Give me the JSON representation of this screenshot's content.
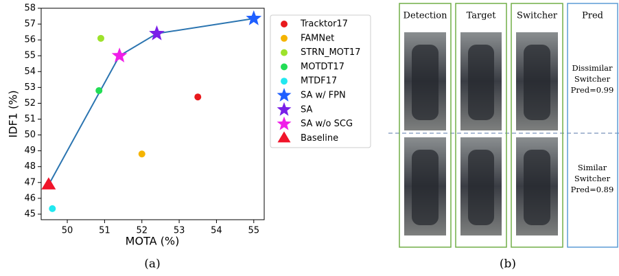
{
  "chart_data": {
    "type": "scatter",
    "xlabel": "MOTA (%)",
    "ylabel": "IDF1 (%)",
    "xlim": [
      49.3,
      55.28
    ],
    "xticks": [
      50,
      51,
      52,
      53,
      54,
      55
    ],
    "ylim": [
      44.65,
      58
    ],
    "yticks": [
      45,
      46,
      47,
      48,
      49,
      50,
      51,
      52,
      53,
      54,
      55,
      56,
      57,
      58
    ],
    "series": [
      {
        "name": "Tracktor17",
        "color": "#e8191c",
        "marker": "circle",
        "x": [
          53.5
        ],
        "values": [
          52.4
        ]
      },
      {
        "name": "FAMNet",
        "color": "#f5b400",
        "marker": "circle",
        "x": [
          52.0
        ],
        "values": [
          48.8
        ]
      },
      {
        "name": "STRN_MOT17",
        "color": "#9de22b",
        "marker": "circle",
        "x": [
          50.9
        ],
        "values": [
          56.1
        ]
      },
      {
        "name": "MOTDT17",
        "color": "#22dd55",
        "marker": "circle",
        "x": [
          50.85
        ],
        "values": [
          52.8
        ]
      },
      {
        "name": "MTDF17",
        "color": "#22e8f0",
        "marker": "circle",
        "x": [
          49.6
        ],
        "values": [
          45.35
        ]
      },
      {
        "name": "SA w/ FPN",
        "color": "#1f5fff",
        "marker": "star",
        "x": [
          55.0
        ],
        "values": [
          57.35
        ]
      },
      {
        "name": "SA",
        "color": "#7a1fe8",
        "marker": "star",
        "x": [
          52.4
        ],
        "values": [
          56.4
        ]
      },
      {
        "name": "SA w/o SCG",
        "color": "#f01ee8",
        "marker": "star",
        "x": [
          51.4
        ],
        "values": [
          55.0
        ]
      },
      {
        "name": "Baseline",
        "color": "#f0142a",
        "marker": "triangle",
        "x": [
          49.5
        ],
        "values": [
          46.85
        ]
      },
      {
        "color": "#2a74b0",
        "marker": "line",
        "x": [
          49.5,
          51.4,
          52.4,
          55.0
        ],
        "values": [
          46.85,
          55.0,
          56.4,
          57.35
        ]
      }
    ]
  },
  "panel_b": {
    "columns": [
      "Detection",
      "Target",
      "Switcher",
      "Pred"
    ],
    "predictions": [
      [
        "Dissimilar",
        "Switcher",
        "Pred=0.99"
      ],
      [
        "Similar",
        "Switcher",
        "Pred=0.89"
      ]
    ]
  },
  "captions": [
    "(a)",
    "(b)"
  ]
}
